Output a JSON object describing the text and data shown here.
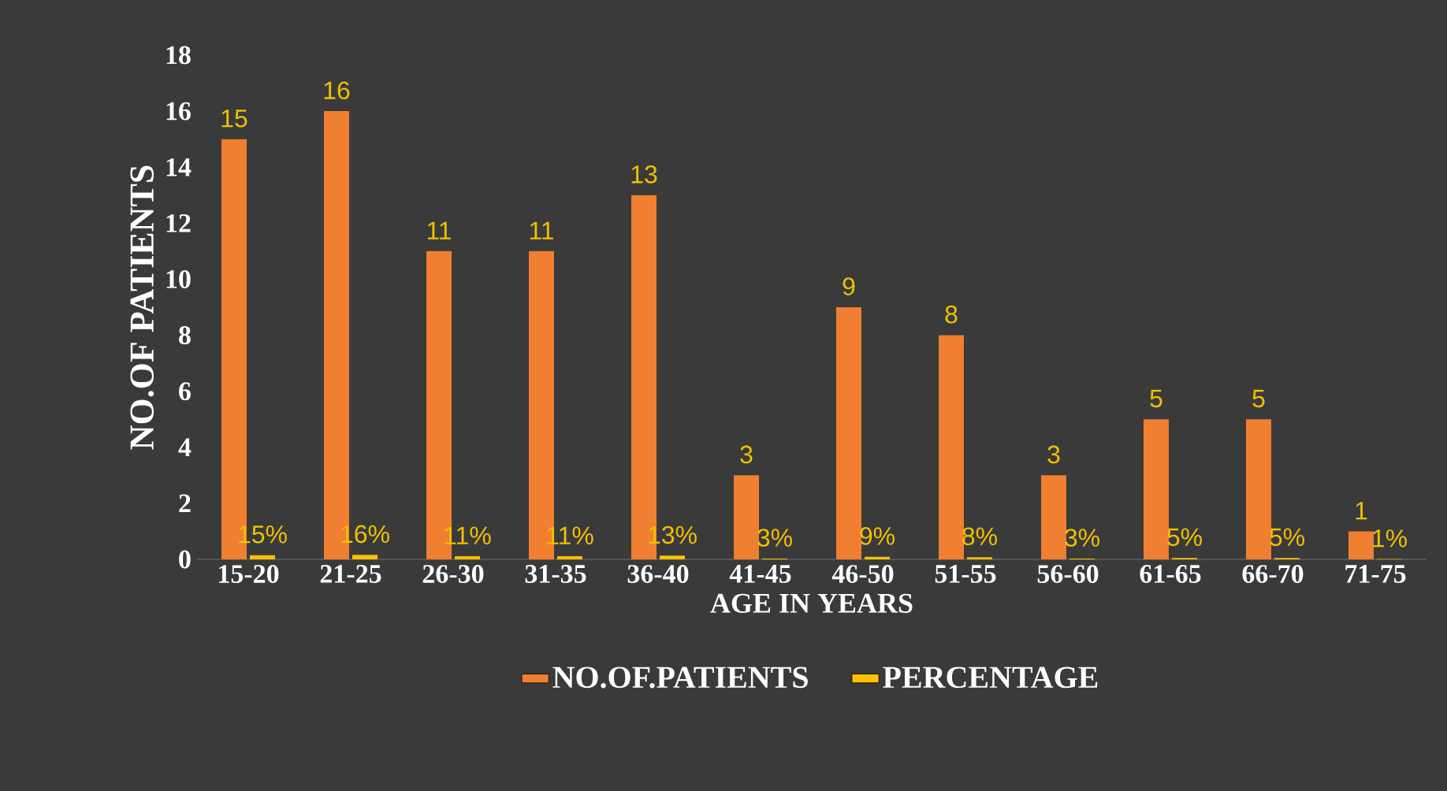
{
  "chart_data": {
    "type": "bar",
    "xlabel": "AGE IN YEARS",
    "ylabel": "NO.OF PATIENTS",
    "categories": [
      "15-20",
      "21-25",
      "26-30",
      "31-35",
      "36-40",
      "41-45",
      "46-50",
      "51-55",
      "56-60",
      "61-65",
      "66-70",
      "71-75"
    ],
    "series": [
      {
        "name": "NO.OF.PATIENTS",
        "color": "#f07f32",
        "values": [
          15,
          16,
          11,
          11,
          13,
          3,
          9,
          8,
          3,
          5,
          5,
          1
        ],
        "value_labels": [
          "15",
          "16",
          "11",
          "11",
          "13",
          "3",
          "9",
          "8",
          "3",
          "5",
          "5",
          "1"
        ]
      },
      {
        "name": "PERCENTAGE",
        "color": "#ffc000",
        "values": [
          0.15,
          0.16,
          0.11,
          0.11,
          0.13,
          0.03,
          0.09,
          0.08,
          0.03,
          0.05,
          0.05,
          0.01
        ],
        "value_labels": [
          "15%",
          "16%",
          "11%",
          "11%",
          "13%",
          "3%",
          "9%",
          "8%",
          "3%",
          "5%",
          "5%",
          "1%"
        ]
      }
    ],
    "ylim": [
      0,
      18
    ],
    "yticks": [
      0,
      2,
      4,
      6,
      8,
      10,
      12,
      14,
      16,
      18
    ],
    "legend": "bottom",
    "grid": false
  }
}
